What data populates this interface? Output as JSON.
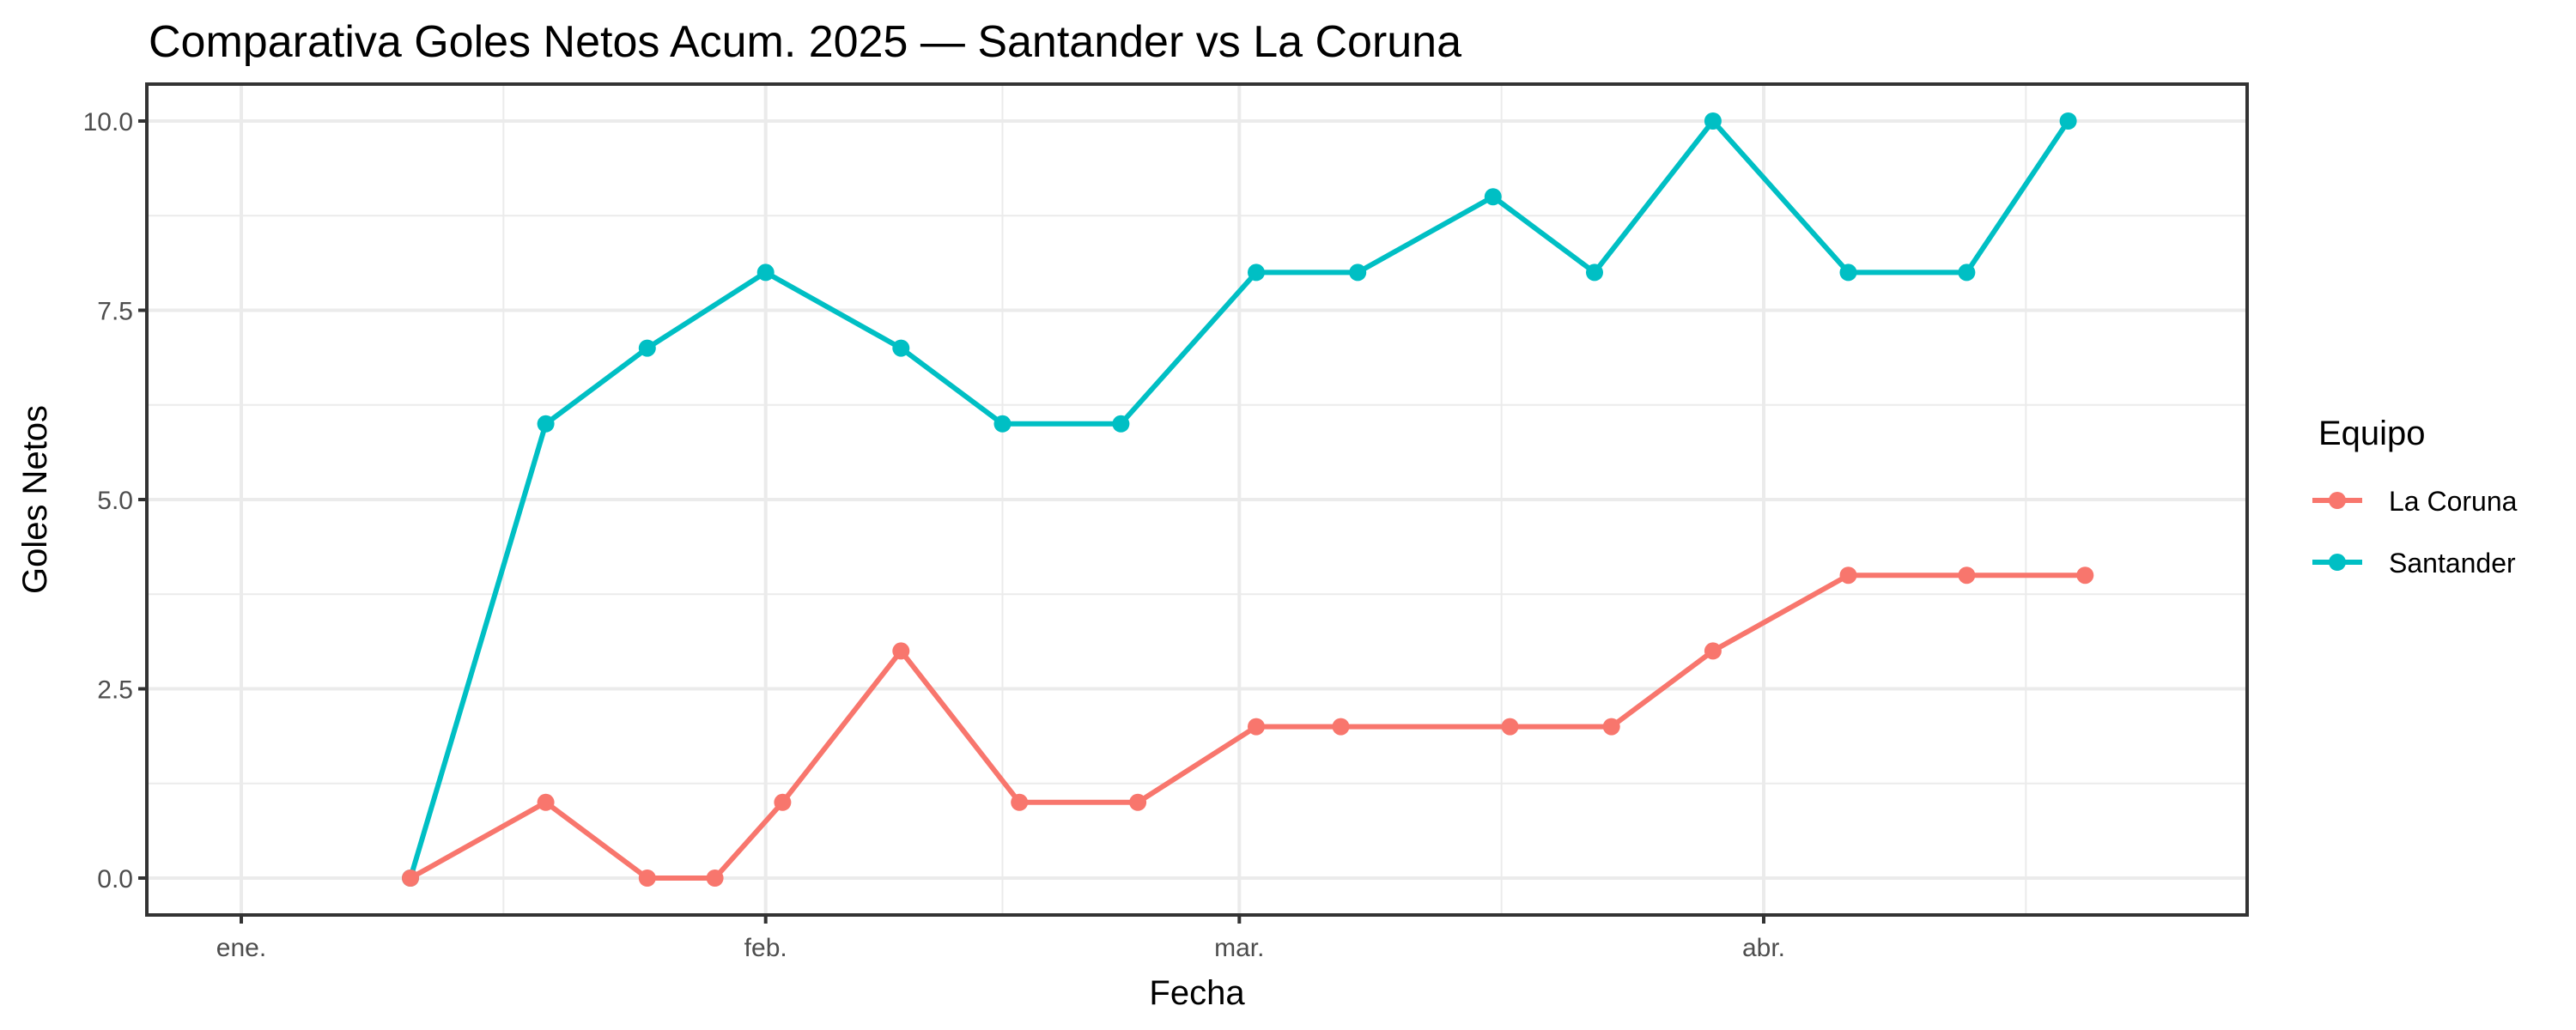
{
  "chart_data": {
    "type": "line",
    "title": "Comparativa Goles Netos Acum. 2025 — Santander vs La Coruna",
    "xlabel": "Fecha",
    "ylabel": "Goles Netos",
    "ylim": [
      -0.45,
      10.5
    ],
    "yticks": [
      0.0,
      2.5,
      5.0,
      7.5,
      10.0
    ],
    "ytick_labels": [
      "0.0",
      "2.5",
      "5.0",
      "7.5",
      "10.0"
    ],
    "xticks": [
      "2025-01-01",
      "2025-02-01",
      "2025-03-01",
      "2025-04-01"
    ],
    "xtick_labels": [
      "ene.",
      "feb.",
      "mar.",
      "abr."
    ],
    "grid": true,
    "legend": {
      "title": "Equipo",
      "position": "right",
      "entries": [
        "La Coruna",
        "Santander"
      ]
    },
    "series": [
      {
        "name": "La Coruna",
        "color": "#F8766D",
        "x": [
          "2025-01-11",
          "2025-01-19",
          "2025-01-25",
          "2025-01-29",
          "2025-02-02",
          "2025-02-09",
          "2025-02-16",
          "2025-02-23",
          "2025-03-02",
          "2025-03-07",
          "2025-03-17",
          "2025-03-23",
          "2025-03-29",
          "2025-04-06",
          "2025-04-13",
          "2025-04-20"
        ],
        "values": [
          0,
          1,
          0,
          0,
          1,
          3,
          1,
          1,
          2,
          2,
          2,
          2,
          3,
          4,
          4,
          4
        ]
      },
      {
        "name": "Santander",
        "color": "#00BFC4",
        "x": [
          "2025-01-11",
          "2025-01-19",
          "2025-01-25",
          "2025-02-01",
          "2025-02-09",
          "2025-02-15",
          "2025-02-22",
          "2025-03-02",
          "2025-03-08",
          "2025-03-16",
          "2025-03-22",
          "2025-03-29",
          "2025-04-06",
          "2025-04-13",
          "2025-04-19"
        ],
        "values": [
          0,
          6,
          7,
          8,
          7,
          6,
          6,
          8,
          8,
          9,
          8,
          10,
          8,
          8,
          10
        ]
      }
    ]
  }
}
